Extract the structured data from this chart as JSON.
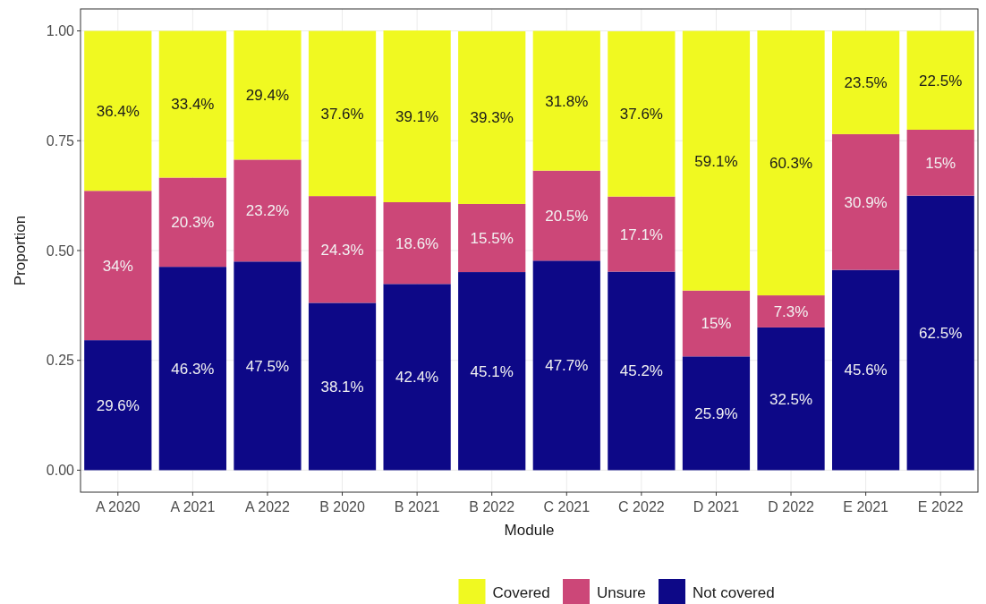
{
  "chart_data": {
    "type": "bar",
    "stacked": true,
    "xlabel": "Module",
    "ylabel": "Proportion",
    "categories": [
      "A 2020",
      "A 2021",
      "A 2022",
      "B 2020",
      "B 2021",
      "B 2022",
      "C 2021",
      "C 2022",
      "D 2021",
      "D 2022",
      "E 2021",
      "E 2022"
    ],
    "series": [
      {
        "name": "Not covered",
        "color": "#0d0887",
        "values": [
          0.296,
          0.463,
          0.475,
          0.381,
          0.424,
          0.451,
          0.477,
          0.452,
          0.259,
          0.325,
          0.456,
          0.625
        ],
        "value_labels": [
          "29.6%",
          "46.3%",
          "47.5%",
          "38.1%",
          "42.4%",
          "45.1%",
          "47.7%",
          "45.2%",
          "25.9%",
          "32.5%",
          "45.6%",
          "62.5%"
        ]
      },
      {
        "name": "Unsure",
        "color": "#cc4778",
        "values": [
          0.34,
          0.203,
          0.232,
          0.243,
          0.186,
          0.155,
          0.205,
          0.171,
          0.15,
          0.073,
          0.309,
          0.15
        ],
        "value_labels": [
          "34%",
          "20.3%",
          "23.2%",
          "24.3%",
          "18.6%",
          "15.5%",
          "20.5%",
          "17.1%",
          "15%",
          "7.3%",
          "30.9%",
          "15%"
        ]
      },
      {
        "name": "Covered",
        "color": "#f0f921",
        "values": [
          0.364,
          0.334,
          0.294,
          0.376,
          0.391,
          0.393,
          0.318,
          0.376,
          0.591,
          0.603,
          0.235,
          0.225
        ],
        "value_labels": [
          "36.4%",
          "33.4%",
          "29.4%",
          "37.6%",
          "39.1%",
          "39.3%",
          "31.8%",
          "37.6%",
          "59.1%",
          "60.3%",
          "23.5%",
          "22.5%"
        ]
      }
    ],
    "ylim": [
      -0.05,
      1.05
    ],
    "yticks": [
      {
        "value": 0,
        "label": "0.00"
      },
      {
        "value": 0.25,
        "label": "0.25"
      },
      {
        "value": 0.5,
        "label": "0.50"
      },
      {
        "value": 0.75,
        "label": "0.75"
      },
      {
        "value": 1,
        "label": "1.00"
      }
    ],
    "grid": true,
    "legend": "bottom"
  }
}
